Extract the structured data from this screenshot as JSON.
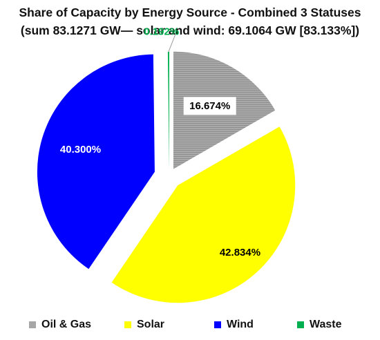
{
  "chart_data": {
    "type": "pie",
    "title": "Share of Capacity by Energy Source - Combined 3 Statuses",
    "subtitle": "(sum 83.1271 GW— solar and wind: 69.1064 GW [83.133%])",
    "slices": [
      {
        "name": "Oil & Gas",
        "value": 16.674,
        "label": "16.674%",
        "color": "#a6a6a6",
        "pattern": "hatch"
      },
      {
        "name": "Solar",
        "value": 42.834,
        "label": "42.834%",
        "color": "#ffff00"
      },
      {
        "name": "Wind",
        "value": 40.3,
        "label": "40.300%",
        "color": "#0000ff"
      },
      {
        "name": "Waste",
        "value": 0.192,
        "label": "0.192%",
        "color": "#00b050"
      }
    ],
    "legend_position": "bottom"
  }
}
